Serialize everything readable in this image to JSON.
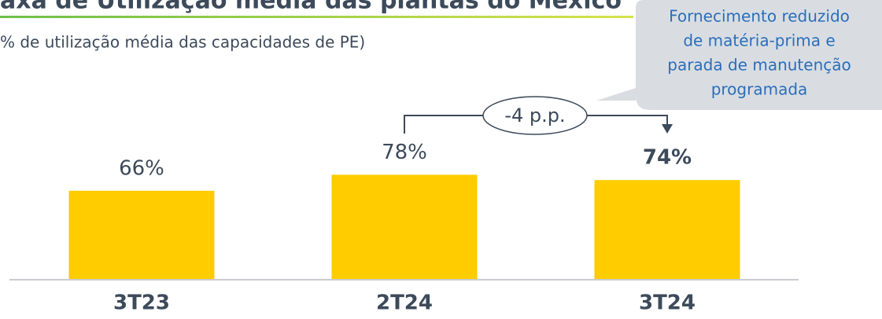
{
  "chart_data": {
    "type": "bar",
    "title": "axa de Utilização média das plantas do México",
    "subtitle": "% de utilização média das capacidades de PE)",
    "categories": [
      "3T23",
      "2T24",
      "3T24"
    ],
    "values": [
      66,
      78,
      74
    ],
    "value_labels": [
      "66%",
      "78%",
      "74%"
    ],
    "color": "#ffcc00",
    "annotations": {
      "change": "-4 p.p.",
      "callout": [
        "Fornecimento reduzido",
        "de matéria-prima e",
        "parada de manutenção",
        "programada"
      ]
    }
  }
}
